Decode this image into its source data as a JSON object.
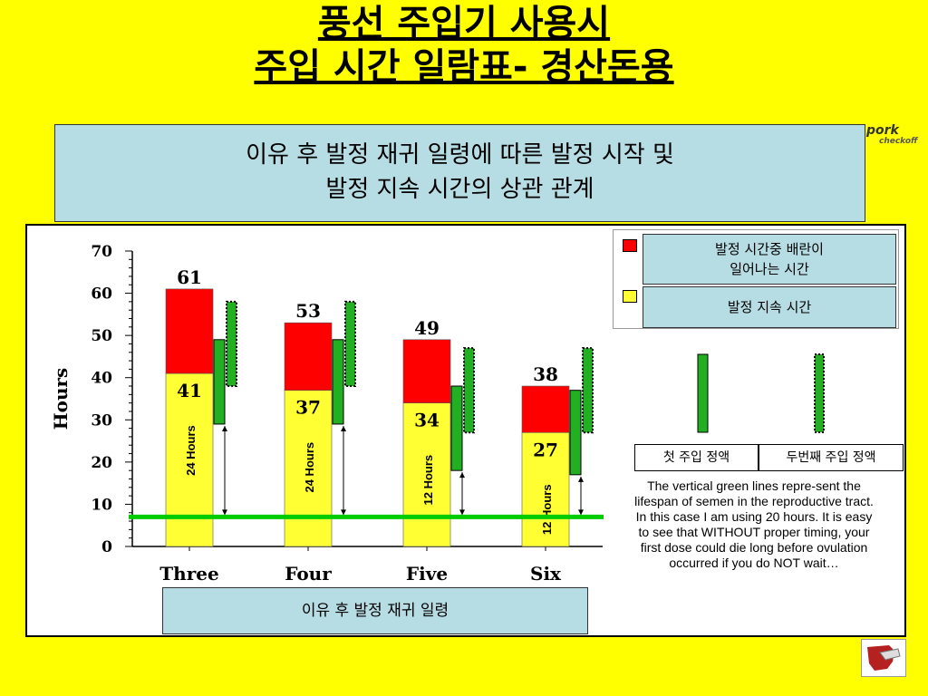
{
  "slide": {
    "title_line1": "풍선 주입기 사용시",
    "title_line2": "주입 시간 일람표- 경산돈용",
    "subtitle_line1": "이유 후 발정 재귀 일령에 따른 발정 시작 및",
    "subtitle_line2": "발정 지속 시간의 상관 관계",
    "xaxis_box": "이유 후 발정 재귀 일령",
    "legend_red": "발정 시간중 배란이\n일어나는 시간",
    "legend_yellow": "발정 지속 시간",
    "dose1": "첫 주입 정액",
    "dose2": "두번째 주입 정액",
    "note": "The vertical green lines repre-sent the lifespan of semen in the reproductive tract.  In this case I am using 20 hours.  It is easy to see that WITHOUT proper timing, your first dose could die long before ovulation occurred if you do NOT wait…",
    "logo_main": "pork",
    "logo_sub": "checkoff"
  },
  "colors": {
    "background": "#ffff00",
    "panel": "#b7dde4",
    "ovulation": "#ff0000",
    "estrus": "#ffff33",
    "semen": "#22b022",
    "baseline": "#00cc00"
  },
  "chart_data": {
    "type": "bar",
    "ylabel": "Hours",
    "ylim": [
      0,
      70
    ],
    "yticks": [
      "0",
      "10",
      "20",
      "30",
      "40",
      "50",
      "60",
      "70"
    ],
    "categories": [
      "Three",
      "Four",
      "Five",
      "Six"
    ],
    "totals": [
      61,
      53,
      49,
      38
    ],
    "totals_labels": [
      "61",
      "53",
      "49",
      "38"
    ],
    "ovulation_start": [
      41,
      37,
      34,
      27
    ],
    "ovulation_start_labels": [
      "41",
      "37",
      "34",
      "27"
    ],
    "wait_labels": [
      "24 Hours",
      "24 Hours",
      "12  Hours",
      "12 Hours"
    ],
    "wait_hours": [
      24,
      24,
      12,
      12
    ],
    "baseline_hour": 7,
    "first_dose": [
      [
        29,
        49
      ],
      [
        29,
        49
      ],
      [
        18,
        38
      ],
      [
        17,
        37
      ]
    ],
    "second_dose": [
      [
        38,
        58
      ],
      [
        38,
        58
      ],
      [
        27,
        47
      ],
      [
        27,
        47
      ]
    ]
  }
}
